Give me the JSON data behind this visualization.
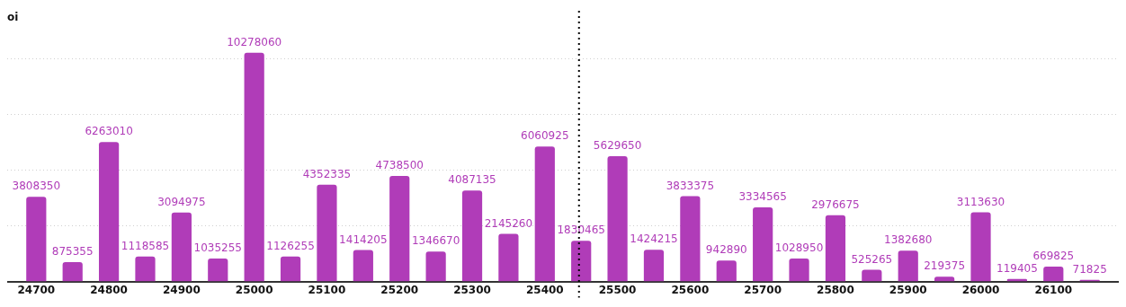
{
  "chart_data": {
    "type": "bar",
    "ylabel": "oi",
    "x": [
      24700,
      24750,
      24800,
      24850,
      24900,
      24950,
      25000,
      25050,
      25100,
      25150,
      25200,
      25250,
      25300,
      25350,
      25400,
      25450,
      25500,
      25550,
      25600,
      25650,
      25700,
      25750,
      25800,
      25850,
      25900,
      25950,
      26000,
      26050,
      26100,
      26150
    ],
    "values": [
      3808350,
      875355,
      6263010,
      1118585,
      3094975,
      1035255,
      10278060,
      1126255,
      4352335,
      1414205,
      4738500,
      1346670,
      4087135,
      2145260,
      6060925,
      1830465,
      5629650,
      1424215,
      3833375,
      942890,
      3334565,
      1028950,
      2976675,
      525265,
      1382680,
      219375,
      3113630,
      119405,
      669825,
      71825
    ],
    "color": "#b03cb8",
    "data_labels": true,
    "xlim": [
      24660,
      26190
    ],
    "xticks": [
      24700,
      24800,
      24900,
      25000,
      25100,
      25200,
      25300,
      25400,
      25500,
      25600,
      25700,
      25800,
      25900,
      26000,
      26100
    ],
    "yticks": [
      {
        "value": 2500000,
        "label": null
      },
      {
        "value": 5000000,
        "label": null
      },
      {
        "value": 7500000,
        "label": null
      },
      {
        "value": 10000000,
        "label": null
      }
    ],
    "tick_labels": "x",
    "grid": "y",
    "ref_lines": [
      {
        "axis": "x",
        "value": 25447,
        "color": "#000000",
        "line_style": "dotted"
      }
    ]
  }
}
